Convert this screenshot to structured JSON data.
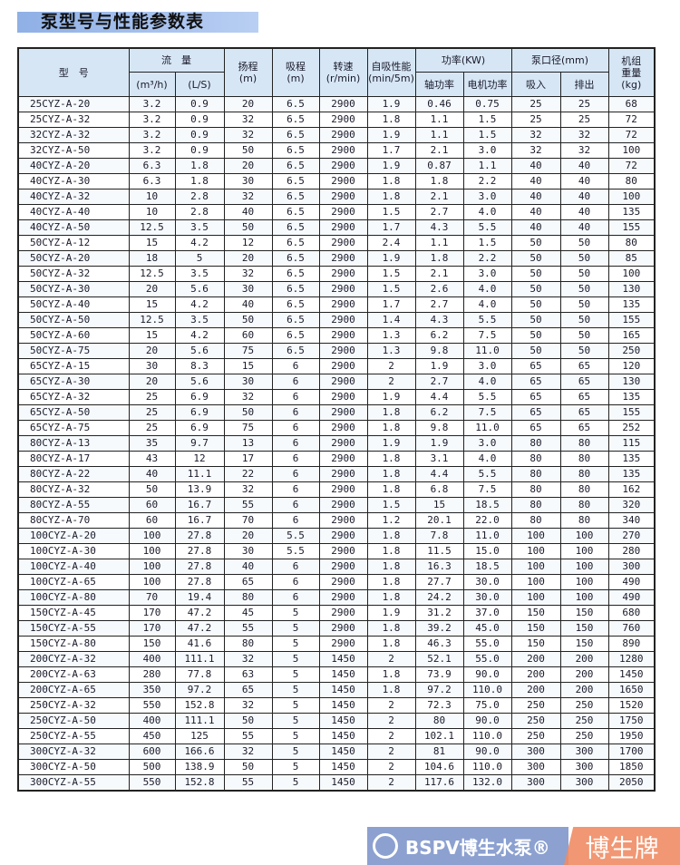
{
  "title": "泵型号与性能参数表",
  "headers": {
    "model": "型　号",
    "flow": "流　量",
    "flow_m3h": "(m³/h)",
    "flow_ls": "(L/S)",
    "head": "扬程\n(m)",
    "suction": "吸程\n(m)",
    "speed": "转速\n(r/min)",
    "selfprime": "自吸性能\n(min/5m)",
    "power": "功率(KW)",
    "shaft_power": "轴功率",
    "motor_power": "电机功率",
    "bore": "泵口径(mm)",
    "inlet": "吸入",
    "outlet": "排出",
    "weight": "机组\n重量\n(kg)"
  },
  "rows": [
    [
      "25CYZ-A-20",
      "3.2",
      "0.9",
      "20",
      "6.5",
      "2900",
      "1.9",
      "0.46",
      "0.75",
      "25",
      "25",
      "68"
    ],
    [
      "25CYZ-A-32",
      "3.2",
      "0.9",
      "32",
      "6.5",
      "2900",
      "1.8",
      "1.1",
      "1.5",
      "25",
      "25",
      "72"
    ],
    [
      "32CYZ-A-32",
      "3.2",
      "0.9",
      "32",
      "6.5",
      "2900",
      "1.9",
      "1.1",
      "1.5",
      "32",
      "32",
      "72"
    ],
    [
      "32CYZ-A-50",
      "3.2",
      "0.9",
      "50",
      "6.5",
      "2900",
      "1.7",
      "2.1",
      "3.0",
      "32",
      "32",
      "100"
    ],
    [
      "40CYZ-A-20",
      "6.3",
      "1.8",
      "20",
      "6.5",
      "2900",
      "1.9",
      "0.87",
      "1.1",
      "40",
      "40",
      "72"
    ],
    [
      "40CYZ-A-30",
      "6.3",
      "1.8",
      "30",
      "6.5",
      "2900",
      "1.8",
      "1.8",
      "2.2",
      "40",
      "40",
      "80"
    ],
    [
      "40CYZ-A-32",
      "10",
      "2.8",
      "32",
      "6.5",
      "2900",
      "1.8",
      "2.1",
      "3.0",
      "40",
      "40",
      "100"
    ],
    [
      "40CYZ-A-40",
      "10",
      "2.8",
      "40",
      "6.5",
      "2900",
      "1.5",
      "2.7",
      "4.0",
      "40",
      "40",
      "135"
    ],
    [
      "40CYZ-A-50",
      "12.5",
      "3.5",
      "50",
      "6.5",
      "2900",
      "1.7",
      "4.3",
      "5.5",
      "40",
      "40",
      "155"
    ],
    [
      "50CYZ-A-12",
      "15",
      "4.2",
      "12",
      "6.5",
      "2900",
      "2.4",
      "1.1",
      "1.5",
      "50",
      "50",
      "80"
    ],
    [
      "50CYZ-A-20",
      "18",
      "5",
      "20",
      "6.5",
      "2900",
      "1.9",
      "1.8",
      "2.2",
      "50",
      "50",
      "85"
    ],
    [
      "50CYZ-A-32",
      "12.5",
      "3.5",
      "32",
      "6.5",
      "2900",
      "1.5",
      "2.1",
      "3.0",
      "50",
      "50",
      "100"
    ],
    [
      "50CYZ-A-30",
      "20",
      "5.6",
      "30",
      "6.5",
      "2900",
      "1.5",
      "2.6",
      "4.0",
      "50",
      "50",
      "130"
    ],
    [
      "50CYZ-A-40",
      "15",
      "4.2",
      "40",
      "6.5",
      "2900",
      "1.7",
      "2.7",
      "4.0",
      "50",
      "50",
      "135"
    ],
    [
      "50CYZ-A-50",
      "12.5",
      "3.5",
      "50",
      "6.5",
      "2900",
      "1.4",
      "4.3",
      "5.5",
      "50",
      "50",
      "155"
    ],
    [
      "50CYZ-A-60",
      "15",
      "4.2",
      "60",
      "6.5",
      "2900",
      "1.3",
      "6.2",
      "7.5",
      "50",
      "50",
      "165"
    ],
    [
      "50CYZ-A-75",
      "20",
      "5.6",
      "75",
      "6.5",
      "2900",
      "1.3",
      "9.8",
      "11.0",
      "50",
      "50",
      "250"
    ],
    [
      "65CYZ-A-15",
      "30",
      "8.3",
      "15",
      "6",
      "2900",
      "2",
      "1.9",
      "3.0",
      "65",
      "65",
      "120"
    ],
    [
      "65CYZ-A-30",
      "20",
      "5.6",
      "30",
      "6",
      "2900",
      "2",
      "2.7",
      "4.0",
      "65",
      "65",
      "130"
    ],
    [
      "65CYZ-A-32",
      "25",
      "6.9",
      "32",
      "6",
      "2900",
      "1.9",
      "4.4",
      "5.5",
      "65",
      "65",
      "135"
    ],
    [
      "65CYZ-A-50",
      "25",
      "6.9",
      "50",
      "6",
      "2900",
      "1.8",
      "6.2",
      "7.5",
      "65",
      "65",
      "155"
    ],
    [
      "65CYZ-A-75",
      "25",
      "6.9",
      "75",
      "6",
      "2900",
      "1.8",
      "9.8",
      "11.0",
      "65",
      "65",
      "252"
    ],
    [
      "80CYZ-A-13",
      "35",
      "9.7",
      "13",
      "6",
      "2900",
      "1.9",
      "1.9",
      "3.0",
      "80",
      "80",
      "115"
    ],
    [
      "80CYZ-A-17",
      "43",
      "12",
      "17",
      "6",
      "2900",
      "1.8",
      "3.1",
      "4.0",
      "80",
      "80",
      "135"
    ],
    [
      "80CYZ-A-22",
      "40",
      "11.1",
      "22",
      "6",
      "2900",
      "1.8",
      "4.4",
      "5.5",
      "80",
      "80",
      "135"
    ],
    [
      "80CYZ-A-32",
      "50",
      "13.9",
      "32",
      "6",
      "2900",
      "1.8",
      "6.8",
      "7.5",
      "80",
      "80",
      "162"
    ],
    [
      "80CYZ-A-55",
      "60",
      "16.7",
      "55",
      "6",
      "2900",
      "1.5",
      "15",
      "18.5",
      "80",
      "80",
      "320"
    ],
    [
      "80CYZ-A-70",
      "60",
      "16.7",
      "70",
      "6",
      "2900",
      "1.2",
      "20.1",
      "22.0",
      "80",
      "80",
      "340"
    ],
    [
      "100CYZ-A-20",
      "100",
      "27.8",
      "20",
      "5.5",
      "2900",
      "1.8",
      "7.8",
      "11.0",
      "100",
      "100",
      "270"
    ],
    [
      "100CYZ-A-30",
      "100",
      "27.8",
      "30",
      "5.5",
      "2900",
      "1.8",
      "11.5",
      "15.0",
      "100",
      "100",
      "280"
    ],
    [
      "100CYZ-A-40",
      "100",
      "27.8",
      "40",
      "6",
      "2900",
      "1.8",
      "16.3",
      "18.5",
      "100",
      "100",
      "300"
    ],
    [
      "100CYZ-A-65",
      "100",
      "27.8",
      "65",
      "6",
      "2900",
      "1.8",
      "27.7",
      "30.0",
      "100",
      "100",
      "490"
    ],
    [
      "100CYZ-A-80",
      "70",
      "19.4",
      "80",
      "6",
      "2900",
      "1.8",
      "24.2",
      "30.0",
      "100",
      "100",
      "490"
    ],
    [
      "150CYZ-A-45",
      "170",
      "47.2",
      "45",
      "5",
      "2900",
      "1.9",
      "31.2",
      "37.0",
      "150",
      "150",
      "680"
    ],
    [
      "150CYZ-A-55",
      "170",
      "47.2",
      "55",
      "5",
      "2900",
      "1.8",
      "39.2",
      "45.0",
      "150",
      "150",
      "760"
    ],
    [
      "150CYZ-A-80",
      "150",
      "41.6",
      "80",
      "5",
      "2900",
      "1.8",
      "46.3",
      "55.0",
      "150",
      "150",
      "890"
    ],
    [
      "200CYZ-A-32",
      "400",
      "111.1",
      "32",
      "5",
      "1450",
      "2",
      "52.1",
      "55.0",
      "200",
      "200",
      "1280"
    ],
    [
      "200CYZ-A-63",
      "280",
      "77.8",
      "63",
      "5",
      "1450",
      "1.8",
      "73.9",
      "90.0",
      "200",
      "200",
      "1450"
    ],
    [
      "200CYZ-A-65",
      "350",
      "97.2",
      "65",
      "5",
      "1450",
      "1.8",
      "97.2",
      "110.0",
      "200",
      "200",
      "1650"
    ],
    [
      "250CYZ-A-32",
      "550",
      "152.8",
      "32",
      "5",
      "1450",
      "2",
      "72.3",
      "75.0",
      "250",
      "250",
      "1520"
    ],
    [
      "250CYZ-A-50",
      "400",
      "111.1",
      "50",
      "5",
      "1450",
      "2",
      "80",
      "90.0",
      "250",
      "250",
      "1750"
    ],
    [
      "250CYZ-A-55",
      "450",
      "125",
      "55",
      "5",
      "1450",
      "2",
      "102.1",
      "110.0",
      "250",
      "250",
      "1950"
    ],
    [
      "300CYZ-A-32",
      "600",
      "166.6",
      "32",
      "5",
      "1450",
      "2",
      "81",
      "90.0",
      "300",
      "300",
      "1700"
    ],
    [
      "300CYZ-A-50",
      "500",
      "138.9",
      "50",
      "5",
      "1450",
      "2",
      "104.6",
      "110.0",
      "300",
      "300",
      "1850"
    ],
    [
      "300CYZ-A-55",
      "550",
      "152.8",
      "55",
      "5",
      "1450",
      "2",
      "117.6",
      "132.0",
      "300",
      "300",
      "2050"
    ]
  ],
  "watermark": {
    "brand": "BSPV博生水泵®",
    "mark": "博生牌"
  },
  "colors": {
    "title_bg": "#a9c3ee",
    "header_bg": "#d6e6f5",
    "watermark_blue": "#7891c8",
    "watermark_orange": "#f08c64"
  }
}
